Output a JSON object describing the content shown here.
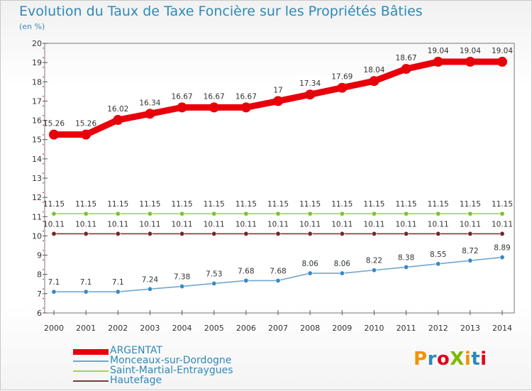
{
  "header": {
    "title": "Evolution du Taux de Taxe Foncière sur les Propriétés Bâties",
    "subtitle": "(en %)"
  },
  "logo": {
    "text": "ProXiti",
    "colors": [
      "#f39200",
      "#2e89b8",
      "#e2001a",
      "#7fb800",
      "#f39200",
      "#2e89b8",
      "#e2001a"
    ]
  },
  "chart_data": {
    "type": "line",
    "x": [
      "2000",
      "2001",
      "2002",
      "2003",
      "2004",
      "2005",
      "2006",
      "2007",
      "2008",
      "2009",
      "2010",
      "2011",
      "2012",
      "2013",
      "2014"
    ],
    "ylim": [
      6,
      20
    ],
    "yticks": [
      "6",
      "7",
      "8",
      "9",
      "10",
      "11",
      "12",
      "13",
      "14",
      "15",
      "16",
      "17",
      "18",
      "19",
      "20"
    ],
    "grid": false,
    "legend_position": "bottom-left",
    "series": [
      {
        "name": "ARGENTAT",
        "color": "#e8000b",
        "emphasis": true,
        "values": [
          15.26,
          15.26,
          16.02,
          16.34,
          16.67,
          16.67,
          16.67,
          17,
          17.34,
          17.69,
          18.04,
          18.67,
          19.04,
          19.04,
          19.04
        ],
        "labels": [
          "15.26",
          "15.26",
          "16.02",
          "16.34",
          "16.67",
          "16.67",
          "16.67",
          "17",
          "17.34",
          "17.69",
          "18.04",
          "18.67",
          "19.04",
          "19.04",
          "19.04"
        ]
      },
      {
        "name": "Monceaux-sur-Dordogne",
        "color": "#6ea7d2",
        "marker": "#3d88c0",
        "values": [
          7.1,
          7.1,
          7.1,
          7.24,
          7.38,
          7.53,
          7.68,
          7.68,
          8.06,
          8.06,
          8.22,
          8.38,
          8.55,
          8.72,
          8.89
        ],
        "labels": [
          "7.1",
          "7.1",
          "7.1",
          "7.24",
          "7.38",
          "7.53",
          "7.68",
          "7.68",
          "8.06",
          "8.06",
          "8.22",
          "8.38",
          "8.55",
          "8.72",
          "8.89"
        ]
      },
      {
        "name": "Saint-Martial-Entraygues",
        "color": "#9ed45a",
        "marker": "#79c13a",
        "values": [
          11.15,
          11.15,
          11.15,
          11.15,
          11.15,
          11.15,
          11.15,
          11.15,
          11.15,
          11.15,
          11.15,
          11.15,
          11.15,
          11.15,
          11.15
        ],
        "labels": [
          "11.15",
          "11.15",
          "11.15",
          "11.15",
          "11.15",
          "11.15",
          "11.15",
          "11.15",
          "11.15",
          "11.15",
          "11.15",
          "11.15",
          "11.15",
          "11.15",
          "11.15"
        ]
      },
      {
        "name": "Hautefage",
        "color": "#7a3a3a",
        "marker": "#6b2b2b",
        "values": [
          10.11,
          10.11,
          10.11,
          10.11,
          10.11,
          10.11,
          10.11,
          10.11,
          10.11,
          10.11,
          10.11,
          10.11,
          10.11,
          10.11,
          10.11
        ],
        "labels": [
          "10.11",
          "10.11",
          "10.11",
          "10.11",
          "10.11",
          "10.11",
          "10.11",
          "10.11",
          "10.11",
          "10.11",
          "10.11",
          "10.11",
          "10.11",
          "10.11",
          "10.11"
        ]
      }
    ]
  }
}
